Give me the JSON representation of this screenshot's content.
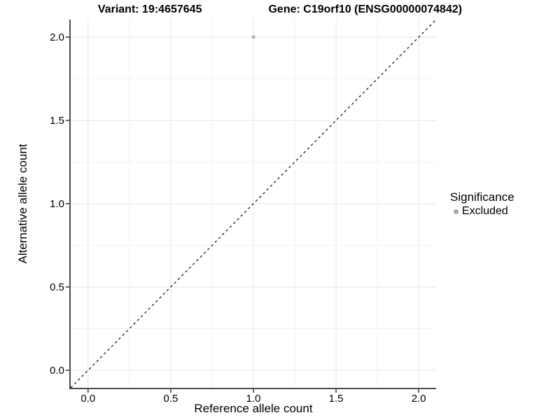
{
  "title": {
    "variant": "Variant: 19:4657645",
    "gene": "Gene: C19orf10 (ENSG00000074842)"
  },
  "chart_data": {
    "type": "scatter",
    "title": "Variant: 19:4657645    Gene: C19orf10 (ENSG00000074842)",
    "xlabel": "Reference allele count",
    "ylabel": "Alternative allele count",
    "xticks": [
      "0.0",
      "0.5",
      "1.0",
      "1.5",
      "2.0"
    ],
    "yticks": [
      "0.0",
      "0.5",
      "1.0",
      "1.5",
      "2.0"
    ],
    "xlim": [
      -0.105,
      2.105
    ],
    "ylim": [
      -0.105,
      2.105
    ],
    "grid": "major+minor",
    "identity_line": {
      "style": "dashed",
      "from_xy": [
        -0.105,
        -0.105
      ],
      "to_xy": [
        2.105,
        2.105
      ]
    },
    "points": [
      {
        "x": 1.0,
        "y": 2.0,
        "series": "Excluded"
      }
    ],
    "legend": {
      "title": "Significance",
      "position": "right",
      "entries": [
        {
          "label": "Excluded",
          "color": "#a6a6a6"
        }
      ]
    }
  },
  "colors": {
    "grid_major": "#e6e6e6",
    "grid_minor": "#f2f2f2",
    "axis_line": "#4d4d4d",
    "tick": "#333333",
    "identity_line": "#1a1a1a",
    "point": "#b5b5b5",
    "legend_dot": "#a6a6a6"
  }
}
